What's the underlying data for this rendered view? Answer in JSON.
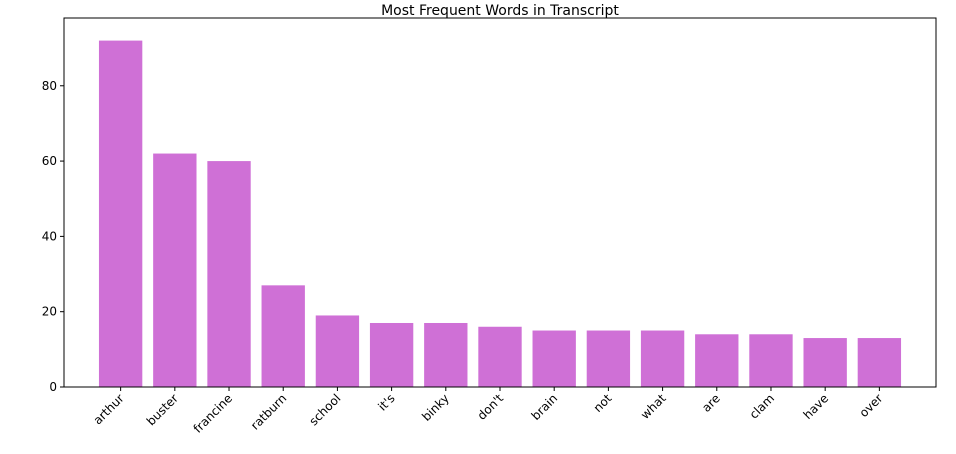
{
  "chart_data": {
    "type": "bar",
    "title": "Most Frequent Words in Transcript",
    "categories": [
      "arthur",
      "buster",
      "francine",
      "ratburn",
      "school",
      "it's",
      "binky",
      "don't",
      "brain",
      "not",
      "what",
      "are",
      "clam",
      "have",
      "over"
    ],
    "values": [
      92,
      62,
      60,
      27,
      19,
      17,
      17,
      16,
      15,
      15,
      15,
      14,
      14,
      13,
      13
    ],
    "color": "#cf70d6",
    "ylim": [
      0,
      98
    ],
    "yticks": [
      0,
      20,
      40,
      60,
      80
    ],
    "grid": false
  }
}
